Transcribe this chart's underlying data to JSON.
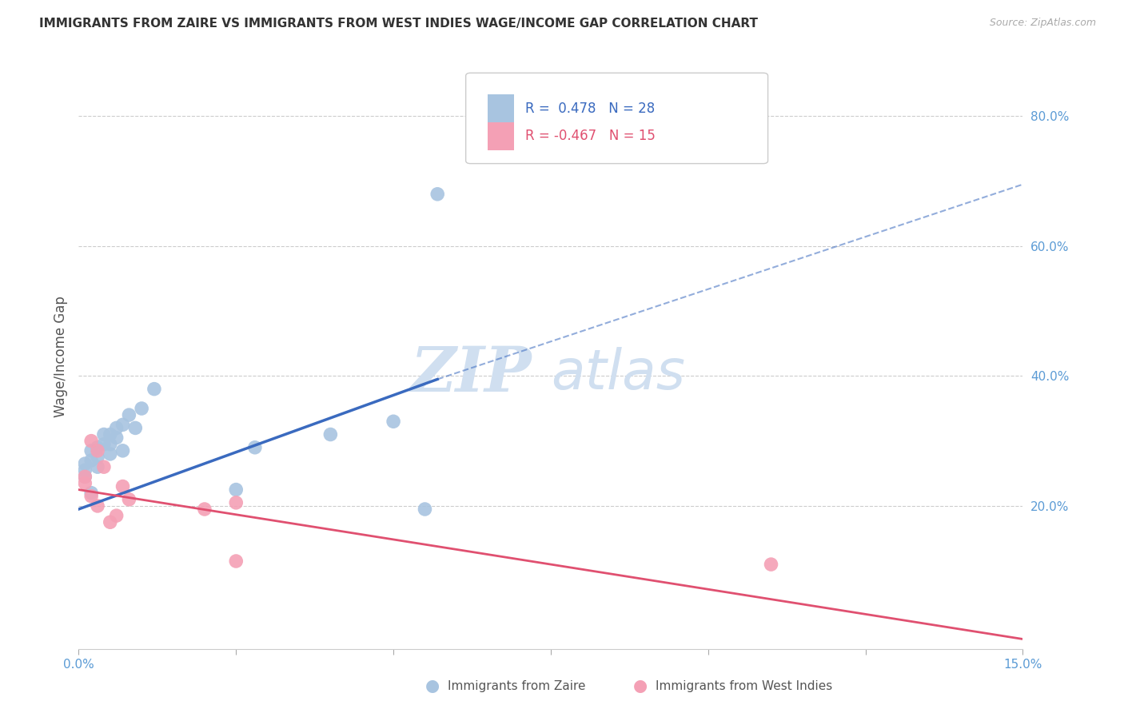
{
  "title": "IMMIGRANTS FROM ZAIRE VS IMMIGRANTS FROM WEST INDIES WAGE/INCOME GAP CORRELATION CHART",
  "source": "Source: ZipAtlas.com",
  "ylabel": "Wage/Income Gap",
  "legend_zaire": "Immigrants from Zaire",
  "legend_wi": "Immigrants from West Indies",
  "r_zaire": 0.478,
  "n_zaire": 28,
  "r_wi": -0.467,
  "n_wi": 15,
  "xlim": [
    0.0,
    0.15
  ],
  "ylim": [
    -0.02,
    0.88
  ],
  "yticks": [
    0.2,
    0.4,
    0.6,
    0.8
  ],
  "ytick_labels": [
    "20.0%",
    "40.0%",
    "60.0%",
    "80.0%"
  ],
  "xticks": [
    0.0,
    0.025,
    0.05,
    0.075,
    0.1,
    0.125,
    0.15
  ],
  "xtick_labels": [
    "0.0%",
    "",
    "",
    "",
    "",
    "",
    "15.0%"
  ],
  "color_zaire": "#a8c4e0",
  "color_wi": "#f4a0b5",
  "color_trend_zaire": "#3a6abf",
  "color_trend_wi": "#e05070",
  "color_axis_right": "#5b9bd5",
  "watermark_color": "#d0dff0",
  "background_color": "#ffffff",
  "zaire_x": [
    0.001,
    0.001,
    0.001,
    0.002,
    0.002,
    0.002,
    0.003,
    0.003,
    0.003,
    0.004,
    0.004,
    0.005,
    0.005,
    0.005,
    0.006,
    0.006,
    0.007,
    0.007,
    0.008,
    0.009,
    0.01,
    0.012,
    0.025,
    0.028,
    0.04,
    0.05,
    0.055,
    0.057
  ],
  "zaire_y": [
    0.245,
    0.255,
    0.265,
    0.22,
    0.27,
    0.285,
    0.26,
    0.275,
    0.29,
    0.295,
    0.31,
    0.28,
    0.295,
    0.31,
    0.305,
    0.32,
    0.285,
    0.325,
    0.34,
    0.32,
    0.35,
    0.38,
    0.225,
    0.29,
    0.31,
    0.33,
    0.195,
    0.68
  ],
  "wi_x": [
    0.001,
    0.001,
    0.002,
    0.002,
    0.003,
    0.003,
    0.004,
    0.005,
    0.006,
    0.007,
    0.008,
    0.02,
    0.025,
    0.025,
    0.11
  ],
  "wi_y": [
    0.235,
    0.245,
    0.215,
    0.3,
    0.2,
    0.285,
    0.26,
    0.175,
    0.185,
    0.23,
    0.21,
    0.195,
    0.205,
    0.115,
    0.11
  ],
  "trend_zaire_x0": 0.0,
  "trend_zaire_y0": 0.195,
  "trend_zaire_x1": 0.057,
  "trend_zaire_y1": 0.395,
  "trend_zaire_xext": 0.15,
  "trend_zaire_yext": 0.695,
  "trend_wi_x0": 0.0,
  "trend_wi_y0": 0.225,
  "trend_wi_x1": 0.15,
  "trend_wi_y1": -0.005
}
